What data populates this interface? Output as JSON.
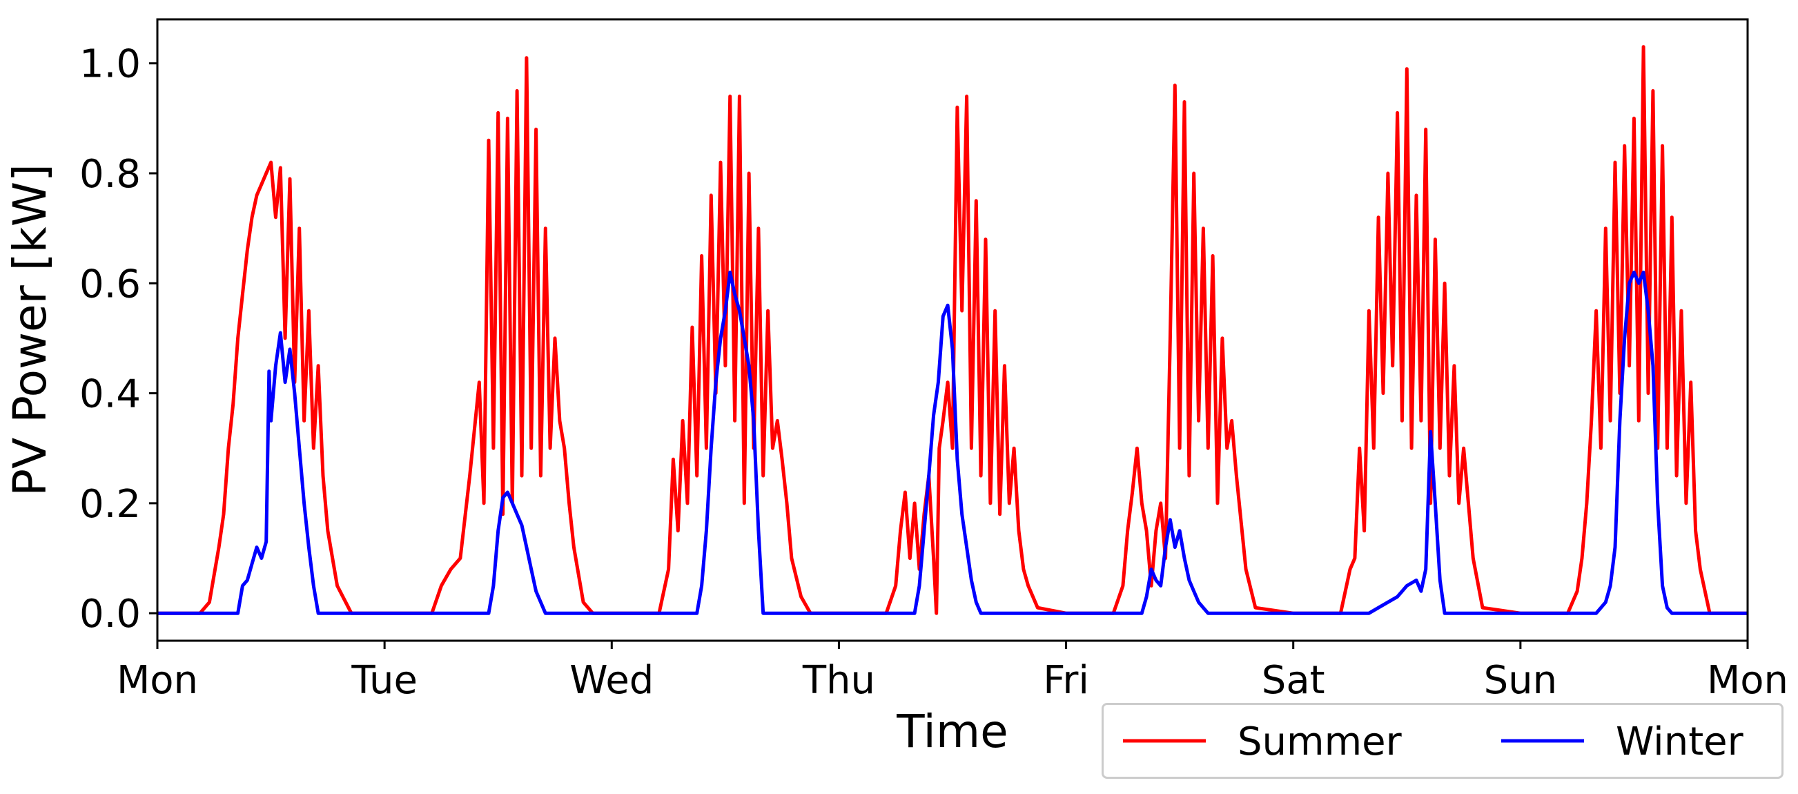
{
  "chart_data": {
    "type": "line",
    "title": "",
    "xlabel": "Time",
    "ylabel": "PV Power [kW]",
    "xlim": [
      0,
      168
    ],
    "ylim": [
      -0.05,
      1.08
    ],
    "x_ticks": [
      0,
      24,
      48,
      72,
      96,
      120,
      144,
      168
    ],
    "x_tick_labels": [
      "Mon",
      "Tue",
      "Wed",
      "Thu",
      "Fri",
      "Sat",
      "Sun",
      "Mon"
    ],
    "y_ticks": [
      0.0,
      0.2,
      0.4,
      0.6,
      0.8,
      1.0
    ],
    "y_tick_labels": [
      "0.0",
      "0.2",
      "0.4",
      "0.6",
      "0.8",
      "1.0"
    ],
    "legend": {
      "placement": "bottom-right outside",
      "entries": [
        "Summer",
        "Winter"
      ]
    },
    "series": [
      {
        "name": "Summer",
        "color": "#ff0000",
        "x": [
          0,
          4.5,
          5.5,
          6.5,
          7.0,
          7.5,
          8.0,
          8.5,
          9.0,
          9.5,
          10.0,
          10.5,
          11.0,
          11.5,
          12.0,
          12.5,
          13.0,
          13.5,
          14.0,
          14.5,
          15.0,
          15.5,
          16.0,
          16.5,
          17.0,
          17.5,
          18.0,
          19.0,
          20.5,
          24.0,
          29.0,
          30.0,
          31.0,
          32.0,
          33.0,
          34.0,
          34.5,
          35.0,
          35.5,
          36.0,
          36.5,
          37.0,
          37.5,
          38.0,
          38.5,
          39.0,
          39.5,
          40.0,
          40.5,
          41.0,
          41.5,
          42.0,
          42.5,
          43.0,
          43.5,
          44.0,
          45.0,
          46.0,
          48.0,
          53.0,
          54.0,
          54.5,
          55.0,
          55.5,
          56.0,
          56.5,
          57.0,
          57.5,
          58.0,
          58.5,
          59.0,
          59.5,
          60.0,
          60.5,
          61.0,
          61.5,
          62.0,
          62.5,
          63.0,
          63.5,
          64.0,
          64.5,
          65.0,
          65.5,
          66.0,
          66.5,
          67.0,
          68.0,
          69.0,
          72.0,
          77.0,
          78.0,
          78.5,
          79.0,
          79.5,
          80.0,
          80.5,
          81.0,
          81.5,
          82.0,
          82.3,
          82.6,
          83.0,
          83.5,
          84.0,
          84.5,
          85.0,
          85.5,
          86.0,
          86.5,
          87.0,
          87.5,
          88.0,
          88.5,
          89.0,
          89.5,
          90.0,
          90.5,
          91.0,
          91.5,
          92.0,
          93.0,
          96.0,
          101.0,
          102.0,
          102.5,
          103.0,
          103.5,
          104.0,
          104.5,
          105.0,
          105.5,
          106.0,
          106.5,
          107.0,
          107.5,
          108.0,
          108.5,
          109.0,
          109.5,
          110.0,
          110.5,
          111.0,
          111.5,
          112.0,
          112.5,
          113.0,
          113.5,
          114.0,
          115.0,
          116.0,
          120.0,
          125.0,
          126.0,
          126.5,
          127.0,
          127.5,
          128.0,
          128.5,
          129.0,
          129.5,
          130.0,
          130.5,
          131.0,
          131.5,
          132.0,
          132.5,
          133.0,
          133.5,
          134.0,
          134.5,
          135.0,
          135.5,
          136.0,
          136.5,
          137.0,
          137.5,
          138.0,
          139.0,
          140.0,
          144.0,
          149.0,
          150.0,
          150.5,
          151.0,
          151.5,
          152.0,
          152.5,
          153.0,
          153.5,
          154.0,
          154.5,
          155.0,
          155.5,
          156.0,
          156.5,
          157.0,
          157.5,
          158.0,
          158.5,
          159.0,
          159.5,
          160.0,
          160.5,
          161.0,
          161.5,
          162.0,
          162.5,
          163.0,
          164.0,
          168.0
        ],
        "y": [
          0,
          0,
          0.02,
          0.12,
          0.18,
          0.3,
          0.38,
          0.5,
          0.58,
          0.66,
          0.72,
          0.76,
          0.78,
          0.8,
          0.82,
          0.72,
          0.81,
          0.5,
          0.79,
          0.42,
          0.7,
          0.35,
          0.55,
          0.3,
          0.45,
          0.25,
          0.15,
          0.05,
          0.0,
          0,
          0,
          0.05,
          0.08,
          0.1,
          0.25,
          0.42,
          0.2,
          0.86,
          0.3,
          0.91,
          0.18,
          0.9,
          0.2,
          0.95,
          0.25,
          1.01,
          0.3,
          0.88,
          0.25,
          0.7,
          0.3,
          0.5,
          0.35,
          0.3,
          0.2,
          0.12,
          0.02,
          0.0,
          0,
          0,
          0.08,
          0.28,
          0.15,
          0.35,
          0.2,
          0.52,
          0.25,
          0.65,
          0.3,
          0.76,
          0.4,
          0.82,
          0.45,
          0.94,
          0.35,
          0.94,
          0.2,
          0.8,
          0.3,
          0.7,
          0.25,
          0.55,
          0.3,
          0.35,
          0.28,
          0.2,
          0.1,
          0.03,
          0.0,
          0,
          0,
          0.05,
          0.15,
          0.22,
          0.1,
          0.2,
          0.08,
          0.18,
          0.25,
          0.1,
          0.0,
          0.3,
          0.35,
          0.42,
          0.3,
          0.92,
          0.55,
          0.94,
          0.3,
          0.75,
          0.25,
          0.68,
          0.2,
          0.55,
          0.18,
          0.45,
          0.2,
          0.3,
          0.15,
          0.08,
          0.05,
          0.01,
          0,
          0,
          0.05,
          0.15,
          0.22,
          0.3,
          0.2,
          0.15,
          0.05,
          0.15,
          0.2,
          0.1,
          0.5,
          0.96,
          0.3,
          0.93,
          0.25,
          0.8,
          0.35,
          0.7,
          0.3,
          0.65,
          0.2,
          0.5,
          0.3,
          0.35,
          0.25,
          0.08,
          0.01,
          0,
          0,
          0.08,
          0.1,
          0.3,
          0.15,
          0.55,
          0.3,
          0.72,
          0.4,
          0.8,
          0.45,
          0.91,
          0.35,
          0.99,
          0.3,
          0.76,
          0.35,
          0.88,
          0.2,
          0.68,
          0.3,
          0.6,
          0.25,
          0.45,
          0.2,
          0.3,
          0.1,
          0.01,
          0,
          0,
          0.04,
          0.1,
          0.2,
          0.35,
          0.55,
          0.3,
          0.7,
          0.35,
          0.82,
          0.4,
          0.85,
          0.45,
          0.9,
          0.35,
          1.03,
          0.4,
          0.95,
          0.3,
          0.85,
          0.3,
          0.72,
          0.25,
          0.55,
          0.2,
          0.42,
          0.15,
          0.08,
          0.0,
          0
        ]
      },
      {
        "name": "Winter",
        "color": "#0000ff",
        "x": [
          0,
          8.5,
          9.0,
          9.5,
          10.0,
          10.5,
          11.0,
          11.5,
          11.8,
          12.0,
          12.5,
          13.0,
          13.5,
          14.0,
          14.5,
          15.0,
          15.5,
          16.0,
          16.5,
          17.0,
          24.0,
          35.0,
          35.5,
          36.0,
          36.5,
          37.0,
          37.5,
          38.0,
          38.5,
          39.0,
          39.5,
          40.0,
          40.5,
          41.0,
          48.0,
          57.0,
          57.5,
          58.0,
          58.5,
          59.0,
          59.5,
          60.0,
          60.5,
          61.0,
          61.5,
          62.0,
          62.5,
          63.0,
          63.5,
          64.0,
          72.0,
          80.0,
          80.5,
          81.0,
          81.5,
          82.0,
          82.5,
          83.0,
          83.5,
          84.0,
          84.5,
          85.0,
          85.5,
          86.0,
          86.5,
          87.0,
          96.0,
          104.0,
          104.5,
          105.0,
          105.5,
          106.0,
          106.5,
          107.0,
          107.5,
          108.0,
          108.5,
          109.0,
          109.5,
          110.0,
          110.5,
          111.0,
          120.0,
          128.0,
          129.0,
          130.0,
          131.0,
          132.0,
          133.0,
          133.5,
          134.0,
          134.5,
          135.0,
          135.5,
          136.0,
          144.0,
          152.0,
          153.0,
          153.5,
          154.0,
          154.5,
          155.0,
          155.5,
          156.0,
          156.5,
          157.0,
          157.5,
          158.0,
          158.5,
          159.0,
          159.5,
          160.0,
          168.0
        ],
        "y": [
          0,
          0,
          0.05,
          0.06,
          0.09,
          0.12,
          0.1,
          0.13,
          0.44,
          0.35,
          0.45,
          0.51,
          0.42,
          0.48,
          0.4,
          0.3,
          0.2,
          0.12,
          0.05,
          0.0,
          0,
          0,
          0.05,
          0.15,
          0.21,
          0.22,
          0.2,
          0.18,
          0.16,
          0.12,
          0.08,
          0.04,
          0.02,
          0.0,
          0,
          0,
          0.05,
          0.15,
          0.3,
          0.42,
          0.5,
          0.55,
          0.62,
          0.58,
          0.55,
          0.5,
          0.45,
          0.35,
          0.15,
          0.0,
          0,
          0,
          0.05,
          0.15,
          0.25,
          0.36,
          0.42,
          0.54,
          0.56,
          0.48,
          0.28,
          0.18,
          0.12,
          0.06,
          0.02,
          0.0,
          0,
          0,
          0.03,
          0.08,
          0.06,
          0.05,
          0.12,
          0.17,
          0.12,
          0.15,
          0.1,
          0.06,
          0.04,
          0.02,
          0.01,
          0.0,
          0,
          0,
          0.01,
          0.02,
          0.03,
          0.05,
          0.06,
          0.04,
          0.08,
          0.33,
          0.2,
          0.06,
          0.0,
          0,
          0,
          0.02,
          0.05,
          0.12,
          0.35,
          0.5,
          0.6,
          0.62,
          0.6,
          0.62,
          0.55,
          0.45,
          0.2,
          0.05,
          0.01,
          0.0,
          0
        ]
      }
    ]
  }
}
